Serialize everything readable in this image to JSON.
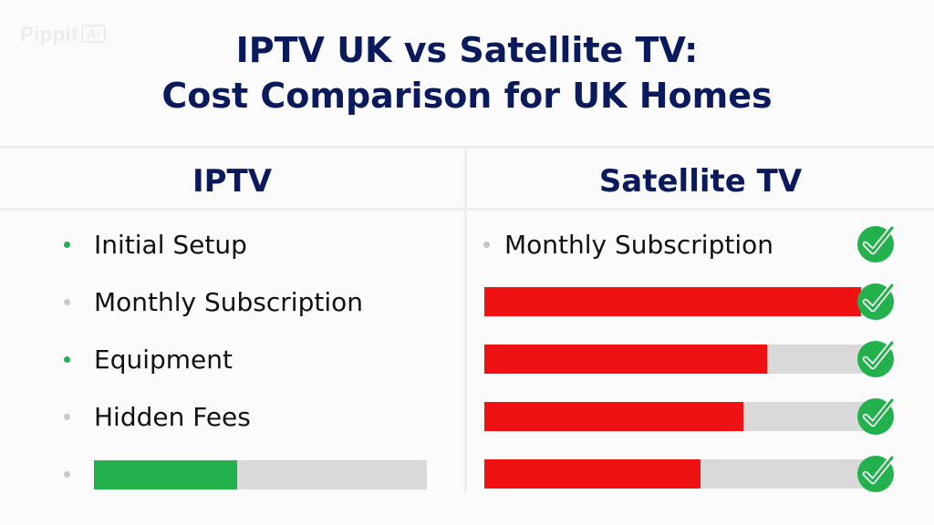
{
  "watermark": {
    "brand": "Pippit",
    "badge": "AI"
  },
  "title": {
    "line1": "IPTV UK vs Satellite TV:",
    "line2": "Cost Comparison for UK Homes"
  },
  "colors": {
    "title": "#0b1a5c",
    "iptv_bar": "#22b14c",
    "satellite_bar": "#f01212",
    "bar_track": "#d9d9d9",
    "bullet_green": "#22b14c",
    "bullet_gray": "#c8c8c8",
    "check": "#22b14c"
  },
  "chart_data": {
    "type": "bar",
    "columns": [
      "IPTV",
      "Satellite TV"
    ],
    "iptv": {
      "header": "IPTV",
      "items": [
        {
          "label": "Initial Setup",
          "bullet": "green"
        },
        {
          "label": "Monthly Subscription",
          "bullet": "gray"
        },
        {
          "label": "Equipment",
          "bullet": "green"
        },
        {
          "label": "Hidden Fees",
          "bullet": "gray"
        }
      ],
      "bar": {
        "bullet": "gray",
        "fraction": 0.43
      }
    },
    "satellite": {
      "header": "Satellite TV",
      "items": [
        {
          "label": "Monthly Subscription",
          "bullet": "gray",
          "check": true
        }
      ],
      "bars": [
        {
          "fraction": 0.96,
          "check": true
        },
        {
          "fraction": 0.72,
          "check": true
        },
        {
          "fraction": 0.66,
          "check": true
        },
        {
          "fraction": 0.55,
          "check": true
        }
      ]
    }
  }
}
